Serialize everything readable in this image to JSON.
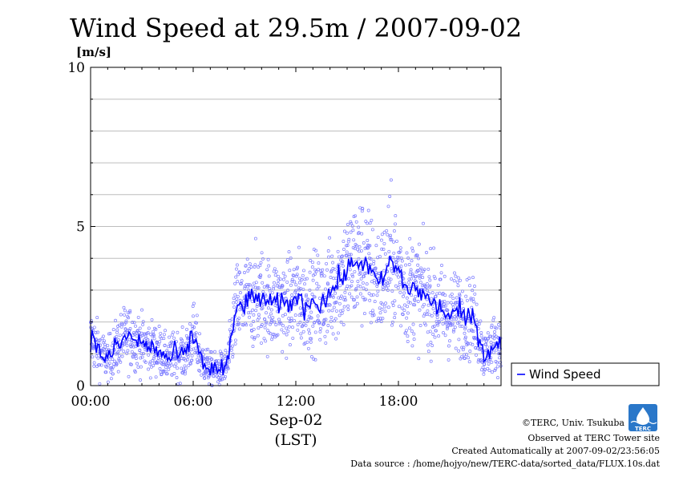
{
  "chart_data": {
    "type": "line",
    "title": "Wind Speed at 29.5m / 2007-09-02",
    "ylabel": "[m/s]",
    "ylim": [
      0,
      10
    ],
    "xlim": [
      "00:00",
      "24:00"
    ],
    "yticks": [
      "0",
      "5",
      "10"
    ],
    "xticks": [
      "00:00",
      "06:00",
      "12:00",
      "18:00"
    ],
    "xlabel_date": "Sep-02",
    "xlabel_tz": "(LST)",
    "grid": true,
    "legend_position": "right",
    "series": [
      {
        "name": "Wind Speed",
        "color": "#0000ff",
        "scatter_color": "#7b7bff",
        "x_hours": [
          0.0,
          0.5,
          1.0,
          1.5,
          2.0,
          2.5,
          3.0,
          3.5,
          4.0,
          4.5,
          5.0,
          5.5,
          6.0,
          6.5,
          7.0,
          7.5,
          8.0,
          8.5,
          9.0,
          9.5,
          10.0,
          10.5,
          11.0,
          11.5,
          12.0,
          12.5,
          13.0,
          13.5,
          14.0,
          14.5,
          15.0,
          15.5,
          16.0,
          16.5,
          17.0,
          17.5,
          18.0,
          18.5,
          19.0,
          19.5,
          20.0,
          20.5,
          21.0,
          21.5,
          22.0,
          22.5,
          23.0,
          23.5
        ],
        "values": [
          1.5,
          1.1,
          0.8,
          1.2,
          1.5,
          1.5,
          1.3,
          1.2,
          1.1,
          0.8,
          1.0,
          0.9,
          1.6,
          0.8,
          0.5,
          0.5,
          0.6,
          2.4,
          2.6,
          2.7,
          2.8,
          2.5,
          2.6,
          2.5,
          2.8,
          2.5,
          2.7,
          2.6,
          2.9,
          3.3,
          3.6,
          3.9,
          3.9,
          3.4,
          3.2,
          3.9,
          3.6,
          3.0,
          3.1,
          2.8,
          2.6,
          2.4,
          2.2,
          2.3,
          2.1,
          2.1,
          0.9,
          1.3
        ]
      }
    ]
  },
  "legend": {
    "label": "Wind Speed"
  },
  "credits": {
    "copyright": "©TERC, Univ. Tsukuba",
    "observed": "Observed at TERC Tower site",
    "created": "Created Automatically at 2007-09-02/23:56:05",
    "source": "Data source : /home/hojyo/new/TERC-data/sorted_data/FLUX.10s.dat",
    "logo_text": "TERC"
  }
}
